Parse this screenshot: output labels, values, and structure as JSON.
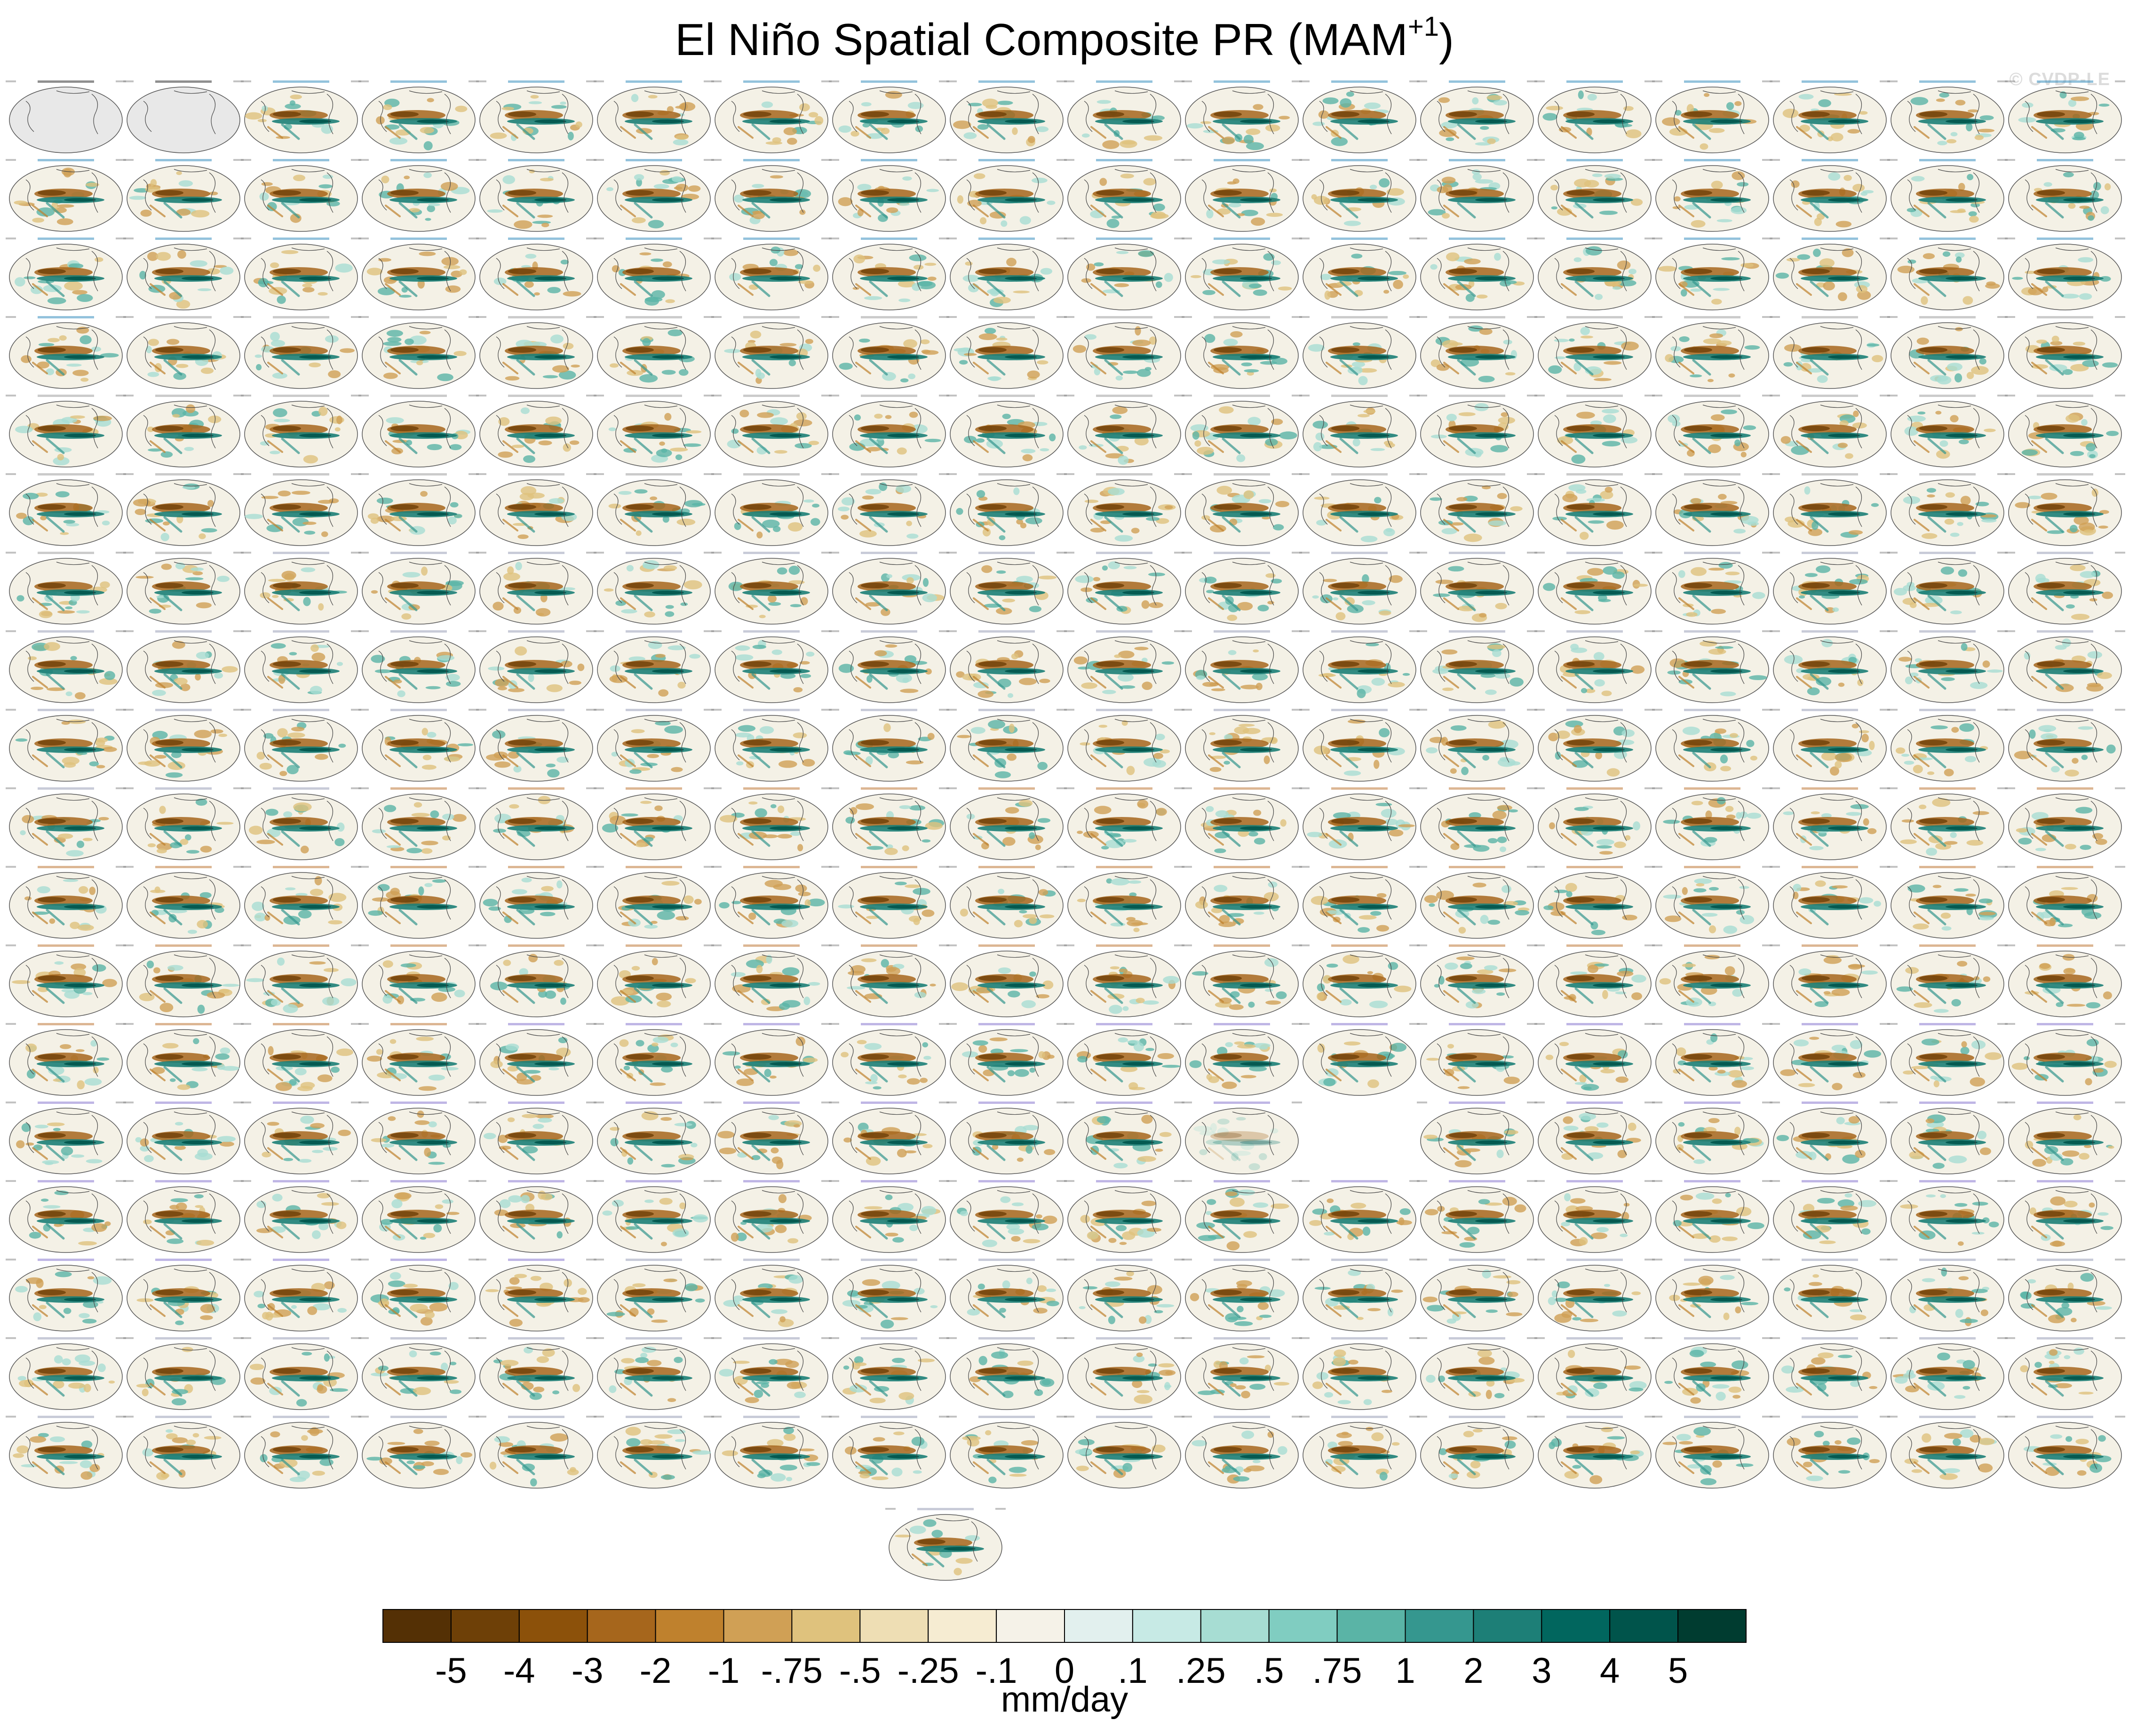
{
  "header": {
    "title": "El Niño Spatial Composite PR (MAM",
    "title_sup": "+1",
    "title_close": ")",
    "watermark": "© CVDP-LE"
  },
  "chart_data": {
    "type": "heatmap",
    "title": "El Niño Spatial Composite PR (MAM+1)",
    "panel_layout": {
      "rows": 18,
      "cols": 18,
      "extra_panels_last_row": 1
    },
    "panel_titles_row1": [
      "GPCC",
      "GPCC_I"
    ],
    "panel_model_groups": [
      "CanESM5",
      "CESM2-LENS",
      "CNRM-CM6-1",
      "GISS-E2-1-G",
      "IPSL-CM6A-LR",
      "MIROC6"
    ],
    "colorbar": {
      "label": "mm/day",
      "tick_labels": [
        "-5",
        "-4",
        "-3",
        "-2",
        "-1",
        "-.75",
        "-.5",
        "-.25",
        "-.1",
        "0",
        ".1",
        ".25",
        ".5",
        ".75",
        "1",
        "2",
        "3",
        "4",
        "5"
      ],
      "colors": [
        "#543005",
        "#6e4007",
        "#8c510a",
        "#a6661c",
        "#bf812d",
        "#d0a055",
        "#dfc27d",
        "#eedeb4",
        "#f6ecd2",
        "#f5f2e8",
        "#e2f0ee",
        "#c7eae5",
        "#a7ddd3",
        "#80cdc1",
        "#5ab4a6",
        "#35978f",
        "#1d7f77",
        "#01665e",
        "#00544b",
        "#003c30"
      ]
    }
  }
}
